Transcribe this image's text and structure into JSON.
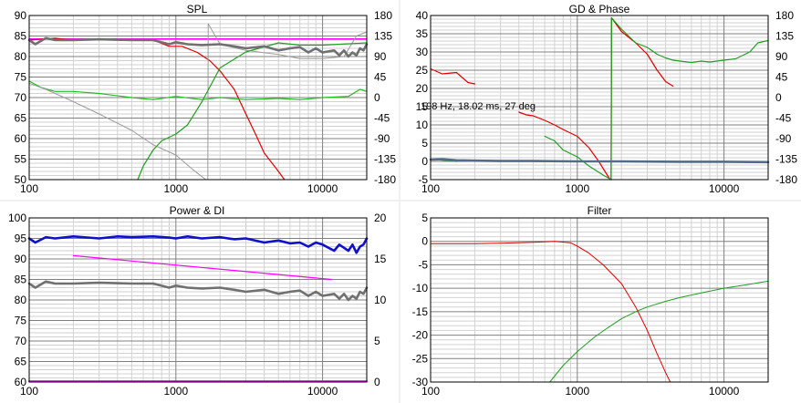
{
  "chart_data": [
    {
      "type": "line",
      "title": "SPL",
      "x_scale": "log",
      "xlim": [
        100,
        20000
      ],
      "x_ticks": [
        100,
        1000,
        10000
      ],
      "x_tick_labels": [
        "100",
        "1000",
        "10000"
      ],
      "ylim": [
        50,
        90
      ],
      "y_ticks": [
        50,
        55,
        60,
        65,
        70,
        75,
        80,
        85,
        90
      ],
      "y2lim": [
        -180,
        180
      ],
      "y2_ticks": [
        -180,
        -135,
        -90,
        -45,
        0,
        45,
        90,
        135,
        180
      ],
      "grid": true,
      "series": [
        {
          "color": "#ff00ff",
          "axis": "left",
          "width": 1.5,
          "x": [
            100,
            20000
          ],
          "y": [
            84.3,
            84.3
          ]
        },
        {
          "color": "#e00000",
          "axis": "left",
          "width": 1.2,
          "x": [
            100,
            150,
            200,
            300,
            500,
            700,
            900,
            1100,
            1400,
            1700,
            2000,
            2500,
            3000,
            3500,
            4000,
            5000,
            5500
          ],
          "y": [
            84,
            84.5,
            84,
            84.2,
            84,
            84,
            82.5,
            82.5,
            81,
            79,
            76.5,
            72,
            66,
            61,
            56.5,
            52,
            50
          ]
        },
        {
          "color": "#1fbf1f",
          "axis": "left",
          "width": 1.2,
          "x": [
            100,
            120,
            150,
            200,
            300,
            500,
            700,
            1000,
            1500,
            2000,
            3000,
            5000,
            7000,
            10000,
            15000,
            18000,
            20000
          ],
          "y": [
            74,
            72.5,
            71.5,
            71.5,
            71,
            70,
            69.5,
            70.3,
            69.5,
            70,
            69.5,
            69.8,
            69.5,
            70,
            70.3,
            72,
            71.5
          ]
        },
        {
          "color": "#9a9a9a",
          "axis": "left",
          "width": 1.0,
          "x": [
            100,
            130,
            200,
            300,
            500,
            700,
            1000,
            1300,
            1600
          ],
          "y": [
            73.5,
            72,
            69,
            66,
            62,
            58.5,
            56,
            52.5,
            50
          ]
        },
        {
          "color": "#9a9a9a",
          "axis": "left",
          "width": 1.0,
          "x": [
            1650,
            1660,
            2000,
            3000,
            5000,
            7000,
            10000,
            14000,
            17000,
            20000
          ],
          "y": [
            50,
            88,
            83,
            81.5,
            80.5,
            79.5,
            79.5,
            80,
            85,
            86
          ]
        },
        {
          "color": "#1f9f1f",
          "axis": "right",
          "width": 1.2,
          "x": [
            550,
            600,
            700,
            800,
            1000,
            1200,
            1500,
            2000,
            3000,
            5000,
            7000,
            10000,
            20000
          ],
          "y": [
            -180,
            -150,
            -115,
            -95,
            -80,
            -60,
            -10,
            65,
            100,
            120,
            115,
            115,
            120
          ]
        },
        {
          "color": "#707070",
          "axis": "left",
          "width": 2.6,
          "x": [
            100,
            110,
            130,
            150,
            200,
            300,
            500,
            700,
            900,
            1000,
            1200,
            1500,
            2000,
            2500,
            3000,
            4000,
            5000,
            6000,
            7000,
            8000,
            9000,
            10000,
            12000,
            13000,
            14000,
            15000,
            16000,
            17000,
            18000,
            19000,
            20000
          ],
          "y": [
            84,
            83,
            84.5,
            84,
            84,
            84.2,
            84,
            84,
            83,
            83.5,
            83,
            82.8,
            83,
            82.5,
            82,
            82.5,
            81.5,
            82,
            82.3,
            81,
            82,
            81,
            81.5,
            80.3,
            81.5,
            80,
            81,
            80.3,
            82,
            81.5,
            83
          ]
        }
      ]
    },
    {
      "type": "line",
      "title": "GD & Phase",
      "x_scale": "log",
      "xlim": [
        100,
        20000
      ],
      "x_ticks": [
        100,
        1000,
        10000
      ],
      "x_tick_labels": [
        "100",
        "1000",
        "10000"
      ],
      "ylim": [
        -5,
        40
      ],
      "y_ticks": [
        -5,
        0,
        5,
        10,
        15,
        20,
        25,
        30,
        35,
        40
      ],
      "y2lim": [
        -180,
        180
      ],
      "y2_ticks": [
        -180,
        -135,
        -90,
        -45,
        0,
        45,
        90,
        135,
        180
      ],
      "grid": true,
      "annotations": [
        "198 Hz, 18.02 ms, 27 deg"
      ],
      "series": [
        {
          "color": "#e00000",
          "axis": "right",
          "width": 1.2,
          "segments": [
            {
              "x": [
                100,
                120,
                150,
                180,
                200
              ],
              "y": [
                63,
                52,
                55,
                33,
                30
              ]
            },
            {
              "x": [
                400,
                450,
                500,
                600,
                700,
                800,
                1000,
                1200,
                1400,
                1600,
                1680
              ],
              "y": [
                -32,
                -38,
                -40,
                -50,
                -60,
                -70,
                -85,
                -110,
                -140,
                -170,
                -180
              ]
            },
            {
              "x": [
                1700,
                1710,
                2000,
                2500,
                3000,
                3500,
                4000,
                4500
              ],
              "y": [
                -180,
                175,
                145,
                120,
                95,
                60,
                35,
                25
              ]
            }
          ]
        },
        {
          "color": "#1f9f1f",
          "axis": "right",
          "width": 1.2,
          "segments": [
            {
              "x": [
                100,
                150,
                200,
                300
              ],
              "y": [
                -135,
                -140,
                -138,
                -140
              ]
            },
            {
              "x": [
                600,
                700,
                800,
                1000,
                1200,
                1500,
                1700
              ],
              "y": [
                -85,
                -95,
                -115,
                -130,
                -150,
                -170,
                -180
              ]
            },
            {
              "x": [
                1700,
                1710,
                2000,
                2500,
                3000,
                3500,
                4000,
                4500,
                5000,
                6000,
                7000,
                8000,
                10000,
                12000,
                15000,
                17000,
                20000
              ],
              "y": [
                -180,
                175,
                150,
                120,
                110,
                95,
                87,
                82,
                80,
                77,
                80,
                78,
                82,
                85,
                100,
                120,
                125
              ]
            }
          ]
        },
        {
          "color": "#1f9f1f",
          "axis": "right",
          "width": 1.0,
          "segments": [
            {
              "x": [
                1700,
                1710
              ],
              "y": [
                -180,
                175
              ]
            }
          ]
        },
        {
          "color": "#556b8b",
          "axis": "left",
          "width": 2.6,
          "x": [
            100,
            120,
            150,
            200,
            300,
            500,
            1000,
            2000,
            5000,
            10000,
            20000
          ],
          "y": [
            0.5,
            0.6,
            0.3,
            0.2,
            0.1,
            0.1,
            0,
            0,
            -0.1,
            -0.1,
            -0.2
          ]
        }
      ]
    },
    {
      "type": "line",
      "title": "Power & DI",
      "x_scale": "log",
      "xlim": [
        100,
        20000
      ],
      "x_ticks": [
        100,
        1000,
        10000
      ],
      "x_tick_labels": [
        "100",
        "1000",
        "10000"
      ],
      "ylim": [
        60,
        100
      ],
      "y_ticks": [
        60,
        65,
        70,
        75,
        80,
        85,
        90,
        95,
        100
      ],
      "y2lim": [
        0,
        20
      ],
      "y2_ticks": [
        0,
        5,
        10,
        15,
        20
      ],
      "grid": true,
      "series": [
        {
          "color": "#ff00ff",
          "axis": "left",
          "width": 1.2,
          "x": [
            200,
            11500
          ],
          "y": [
            90.8,
            85
          ]
        },
        {
          "color": "#ff00ff",
          "axis": "left",
          "width": 2.0,
          "x": [
            100,
            20000
          ],
          "y": [
            60.2,
            60.2
          ]
        },
        {
          "color": "#1010c8",
          "axis": "left",
          "width": 2.6,
          "x": [
            100,
            110,
            130,
            150,
            200,
            300,
            400,
            500,
            700,
            900,
            1000,
            1200,
            1500,
            2000,
            2500,
            3000,
            4000,
            5000,
            6000,
            7000,
            8000,
            9000,
            10000,
            12000,
            13000,
            15000,
            16000,
            17000,
            18000,
            19000,
            20000
          ],
          "y": [
            95,
            94,
            95.3,
            95,
            95.5,
            95,
            95.5,
            95.3,
            95.5,
            95.2,
            95,
            95.5,
            95,
            95.3,
            94.8,
            95,
            94,
            94.5,
            93.8,
            94,
            93,
            94,
            93.5,
            92,
            93.5,
            92,
            93.5,
            91.5,
            93,
            93.5,
            95
          ]
        },
        {
          "color": "#707070",
          "axis": "left",
          "width": 2.6,
          "x": [
            100,
            110,
            130,
            150,
            200,
            300,
            500,
            700,
            900,
            1000,
            1200,
            1500,
            2000,
            2500,
            3000,
            4000,
            5000,
            6000,
            7000,
            8000,
            9000,
            10000,
            12000,
            13000,
            14000,
            15000,
            16000,
            17000,
            18000,
            19000,
            20000
          ],
          "y": [
            84,
            83,
            84.5,
            84,
            84,
            84.2,
            84,
            84,
            83,
            83.5,
            83,
            82.8,
            83,
            82.5,
            82,
            82.5,
            81.5,
            82,
            82.3,
            81,
            82,
            81,
            81.5,
            80.3,
            81.5,
            80,
            81,
            80.3,
            82,
            81.5,
            83
          ]
        }
      ]
    },
    {
      "type": "line",
      "title": "Filter",
      "x_scale": "log",
      "xlim": [
        100,
        20000
      ],
      "x_ticks": [
        100,
        1000,
        10000
      ],
      "x_tick_labels": [
        "100",
        "1000",
        "10000"
      ],
      "ylim": [
        -30,
        5
      ],
      "y_ticks": [
        -30,
        -25,
        -20,
        -15,
        -10,
        -5,
        0,
        5
      ],
      "grid": true,
      "series": [
        {
          "color": "#e00000",
          "axis": "left",
          "width": 1.0,
          "x": [
            100,
            200,
            300,
            500,
            700,
            900,
            1000,
            1200,
            1500,
            2000,
            2500,
            3000,
            3500,
            4000,
            4300
          ],
          "y": [
            -0.5,
            -0.5,
            -0.4,
            -0.2,
            0,
            -0.3,
            -1,
            -2.5,
            -5,
            -9,
            -14,
            -19,
            -24,
            -28,
            -30
          ]
        },
        {
          "color": "#1f9f1f",
          "axis": "left",
          "width": 1.0,
          "x": [
            650,
            800,
            1000,
            1300,
            1600,
            2000,
            2500,
            3000,
            4000,
            5000,
            7000,
            10000,
            14000,
            20000
          ],
          "y": [
            -30,
            -26.5,
            -23.5,
            -20.5,
            -18.5,
            -16.5,
            -15,
            -14,
            -12.8,
            -12,
            -11,
            -10,
            -9.3,
            -8.5
          ]
        }
      ]
    }
  ]
}
